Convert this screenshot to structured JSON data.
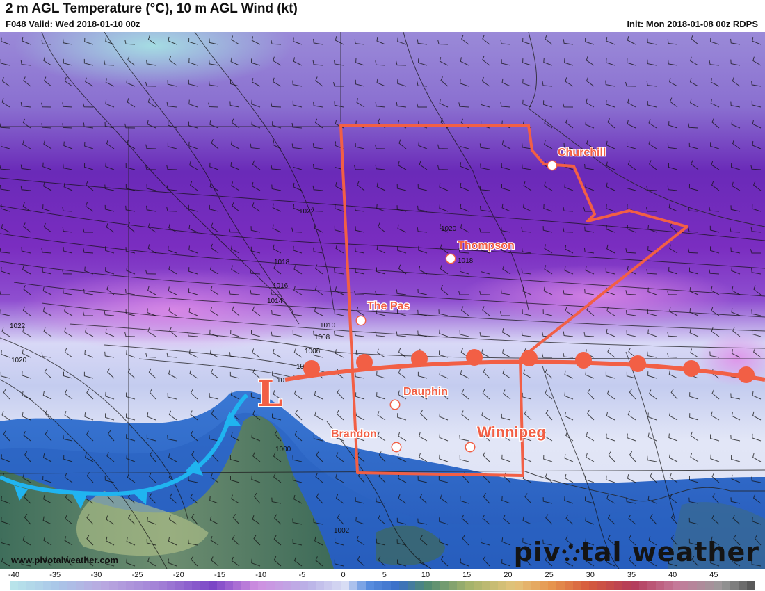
{
  "header": {
    "title": "2 m AGL Temperature (°C), 10 m AGL Wind (kt)",
    "valid": "F048 Valid: Wed 2018-01-10 00z",
    "init": "Init: Mon 2018-01-08 00z RDPS"
  },
  "map": {
    "cities": [
      {
        "name": "Churchill"
      },
      {
        "name": "Thompson"
      },
      {
        "name": "The Pas"
      },
      {
        "name": "Dauphin"
      },
      {
        "name": "Brandon"
      },
      {
        "name": "Winnipeg"
      }
    ],
    "low_symbol": "L",
    "isobars": [
      "1022",
      "1020",
      "1018",
      "1018",
      "1016",
      "1014",
      "1010",
      "1008",
      "1006",
      "1022",
      "1020",
      "1000",
      "1002",
      "10",
      "10"
    ],
    "colors": {
      "front_warm": "#f25f45",
      "front_cold": "#20b4f0",
      "annotation": "#f25f45"
    }
  },
  "footer": {
    "website": "www.pivotalweather.com",
    "brand_left": "piv",
    "brand_right": "tal weather"
  },
  "colorbar": {
    "ticks": [
      "-40",
      "-35",
      "-30",
      "-25",
      "-20",
      "-15",
      "-10",
      "-5",
      "0",
      "5",
      "10",
      "15",
      "20",
      "25",
      "30",
      "35",
      "40",
      "45"
    ]
  }
}
